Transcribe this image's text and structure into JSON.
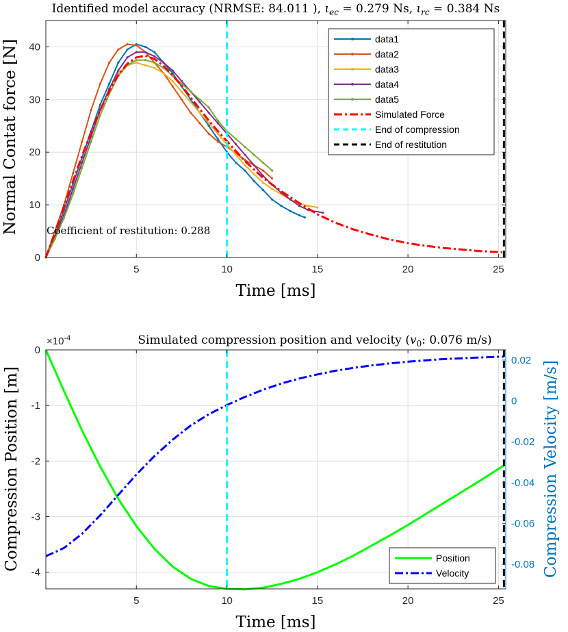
{
  "chart_data": [
    {
      "type": "line",
      "title": "Identified model accuracy (NRMSE: 84.011 ), ιec = 0.279 Ns, ιrc = 0.384 Ns",
      "title_parts": {
        "prefix": "Identified model accuracy (NRMSE: 84.011 ), ",
        "iota_ec_sub": "ec",
        "iota_ec_value": " = 0.279 Ns, ",
        "iota_rc_sub": "rc",
        "iota_rc_value": " = 0.384 Ns"
      },
      "xlabel": "Time [ms]",
      "ylabel": "Normal Contat force [N]",
      "xlim": [
        0,
        25.4
      ],
      "ylim": [
        0,
        45
      ],
      "xticks": [
        5,
        10,
        15,
        20,
        25
      ],
      "yticks": [
        0,
        10,
        20,
        30,
        40
      ],
      "grid": true,
      "legend_position": "top-right",
      "annotation": "Coefficient of restitution: 0.288",
      "series": [
        {
          "name": "data1",
          "color": "#0072bd",
          "style": "solid-marker",
          "x": [
            0,
            0.5,
            1,
            1.5,
            2,
            2.5,
            3,
            3.5,
            4,
            4.5,
            5,
            5.5,
            6,
            6.5,
            7,
            7.5,
            8,
            8.5,
            9,
            9.5,
            10,
            10.5,
            11,
            11.5,
            12,
            12.5,
            13,
            13.5,
            14,
            14.3
          ],
          "y": [
            0,
            4,
            9,
            14,
            19,
            24,
            29,
            33,
            37,
            39.5,
            40.5,
            40,
            39,
            37,
            35,
            32.5,
            30,
            27.5,
            25,
            22.5,
            20,
            18,
            16.5,
            14.5,
            12.8,
            11,
            9.8,
            8.8,
            8,
            7.6
          ]
        },
        {
          "name": "data2",
          "color": "#d95319",
          "style": "solid-marker",
          "x": [
            0,
            0.5,
            1,
            1.5,
            2,
            2.5,
            3,
            3.5,
            4,
            4.5,
            5,
            5.5,
            6,
            6.5,
            7,
            7.5,
            8,
            8.5,
            9,
            9.5,
            10,
            10.5,
            11,
            11.5,
            12,
            12.5
          ],
          "y": [
            0,
            5,
            10,
            16,
            22,
            28,
            33,
            37,
            39.5,
            40.5,
            40.3,
            39,
            37,
            35,
            32.5,
            30,
            27.5,
            25.5,
            23.5,
            22,
            21,
            19.8,
            18.5,
            17.5,
            16.5,
            15
          ]
        },
        {
          "name": "data3",
          "color": "#edb120",
          "style": "solid-marker",
          "x": [
            0,
            0.5,
            1,
            1.5,
            2,
            2.5,
            3,
            3.5,
            4,
            4.5,
            5,
            5.5,
            6,
            6.5,
            7,
            7.5,
            8,
            8.5,
            9,
            9.5,
            10,
            10.5,
            11,
            11.5,
            12,
            12.5,
            13,
            13.5,
            14,
            14.5,
            15
          ],
          "y": [
            0,
            4,
            8,
            13,
            18,
            23,
            28,
            32,
            35,
            36.5,
            37,
            36.5,
            36,
            35,
            33.5,
            31.5,
            29.5,
            27.5,
            25.5,
            23.5,
            21.5,
            19.5,
            17.5,
            15.8,
            14.2,
            13,
            12,
            11,
            10.2,
            9.8,
            9.5
          ]
        },
        {
          "name": "data4",
          "color": "#7e2f8e",
          "style": "solid-marker",
          "x": [
            0,
            0.5,
            1,
            1.5,
            2,
            2.5,
            3,
            3.5,
            4,
            4.5,
            5,
            5.5,
            6,
            6.5,
            7,
            7.5,
            8,
            8.5,
            9,
            9.5,
            10,
            10.5,
            11,
            11.5,
            12,
            12.5,
            13,
            13.5,
            14,
            14.5,
            15.3
          ],
          "y": [
            0,
            4,
            8,
            13,
            18,
            23,
            28,
            32,
            35.5,
            38,
            39,
            39,
            38.2,
            37,
            35.5,
            33.5,
            31.5,
            29.5,
            27.5,
            25.5,
            23.5,
            21.5,
            19.5,
            17.5,
            15.5,
            13.8,
            12.3,
            11,
            9.8,
            9,
            8.5
          ]
        },
        {
          "name": "data5",
          "color": "#77ac30",
          "style": "solid-marker",
          "x": [
            0,
            0.5,
            1,
            1.5,
            2,
            2.5,
            3,
            3.5,
            4,
            4.5,
            5,
            5.5,
            6,
            6.5,
            7,
            7.5,
            8,
            8.5,
            9,
            9.5,
            10,
            10.5,
            11,
            11.5,
            12,
            12.5
          ],
          "y": [
            0,
            3.5,
            7.5,
            12,
            17,
            22,
            27,
            31,
            34.5,
            36.5,
            37.5,
            37.5,
            37,
            36,
            34.5,
            33,
            31.5,
            30,
            28.5,
            26,
            24,
            22.5,
            21,
            19.5,
            18,
            16.5
          ]
        },
        {
          "name": "Simulated Force",
          "color": "#ff0000",
          "style": "dashdot",
          "x": [
            0,
            0.5,
            1,
            1.5,
            2,
            2.5,
            3,
            3.5,
            4,
            4.5,
            5,
            5.5,
            6,
            6.5,
            7,
            7.5,
            8,
            8.5,
            9,
            9.5,
            10,
            11,
            12,
            13,
            14,
            15,
            16,
            17,
            18,
            19,
            20,
            21,
            22,
            23,
            24,
            25.2
          ],
          "y": [
            0,
            4.7,
            9.6,
            14.5,
            19.3,
            23.8,
            28,
            31.6,
            34.6,
            36.8,
            38,
            38.3,
            37.7,
            36.4,
            34.6,
            32.6,
            30.4,
            28.2,
            26,
            24,
            22.1,
            18.3,
            15.1,
            12.6,
            10.3,
            8.2,
            6.6,
            5.3,
            4.3,
            3.4,
            2.7,
            2.2,
            1.8,
            1.5,
            1.2,
            1.0
          ]
        },
        {
          "name": "End of compression",
          "color": "#00ffff",
          "style": "dashed",
          "vertical_at": 10
        },
        {
          "name": "End of restitution",
          "color": "#000000",
          "style": "dashed",
          "vertical_at": 25.3
        }
      ]
    },
    {
      "type": "line",
      "title": "Simulated compression position and velocity (v0: 0.076 m/s)",
      "title_parts": {
        "prefix": "Simulated compression position and velocity (",
        "v_sub": "0",
        "suffix": ": 0.076 m/s)"
      },
      "exponent_label": "×10",
      "exponent_power": "-4",
      "xlabel": "Time [ms]",
      "ylabel_left": "Compression Position [m]",
      "ylabel_right": "Compression Velocity [m/s]",
      "xlim": [
        0,
        25.4
      ],
      "ylim_left": [
        -4.3,
        0
      ],
      "ylim_right": [
        -0.092,
        0.025
      ],
      "xticks": [
        5,
        10,
        15,
        20,
        25
      ],
      "yticks_left": [
        0,
        -1,
        -2,
        -3,
        -4
      ],
      "yticks_right": [
        0.02,
        0,
        -0.02,
        -0.04,
        -0.06,
        -0.08
      ],
      "grid": true,
      "legend_position": "bottom-right",
      "series": [
        {
          "name": "Position",
          "color": "#00ff00",
          "style": "solid",
          "axis": "left",
          "x": [
            0,
            1,
            2,
            3,
            4,
            5,
            6,
            7,
            8,
            9,
            10,
            11,
            12,
            13,
            14,
            15,
            16,
            17,
            18,
            19,
            20,
            21,
            22,
            23,
            24,
            25.3
          ],
          "y": [
            0,
            -0.74,
            -1.45,
            -2.1,
            -2.68,
            -3.17,
            -3.58,
            -3.9,
            -4.12,
            -4.25,
            -4.3,
            -4.31,
            -4.28,
            -4.21,
            -4.12,
            -4.0,
            -3.86,
            -3.7,
            -3.52,
            -3.34,
            -3.15,
            -2.95,
            -2.75,
            -2.55,
            -2.35,
            -2.08
          ]
        },
        {
          "name": "Velocity",
          "color": "#0000ff",
          "style": "dashdot",
          "axis": "right",
          "x": [
            0,
            1,
            2,
            3,
            4,
            5,
            6,
            7,
            8,
            9,
            10,
            11,
            12,
            13,
            14,
            15,
            16,
            17,
            18,
            19,
            20,
            21,
            22,
            23,
            24,
            25.3
          ],
          "y": [
            -0.076,
            -0.072,
            -0.065,
            -0.056,
            -0.046,
            -0.036,
            -0.027,
            -0.019,
            -0.012,
            -0.0065,
            -0.002,
            0.002,
            0.0055,
            0.0085,
            0.011,
            0.013,
            0.0148,
            0.0162,
            0.0174,
            0.0184,
            0.0192,
            0.0199,
            0.0205,
            0.0209,
            0.0213,
            0.0217
          ]
        },
        {
          "name": "End of compression",
          "color": "#00ffff",
          "style": "dashed",
          "vertical_at": 10
        },
        {
          "name": "End of restitution",
          "color": "#000000",
          "style": "dashed",
          "vertical_at": 25.3
        }
      ]
    }
  ]
}
